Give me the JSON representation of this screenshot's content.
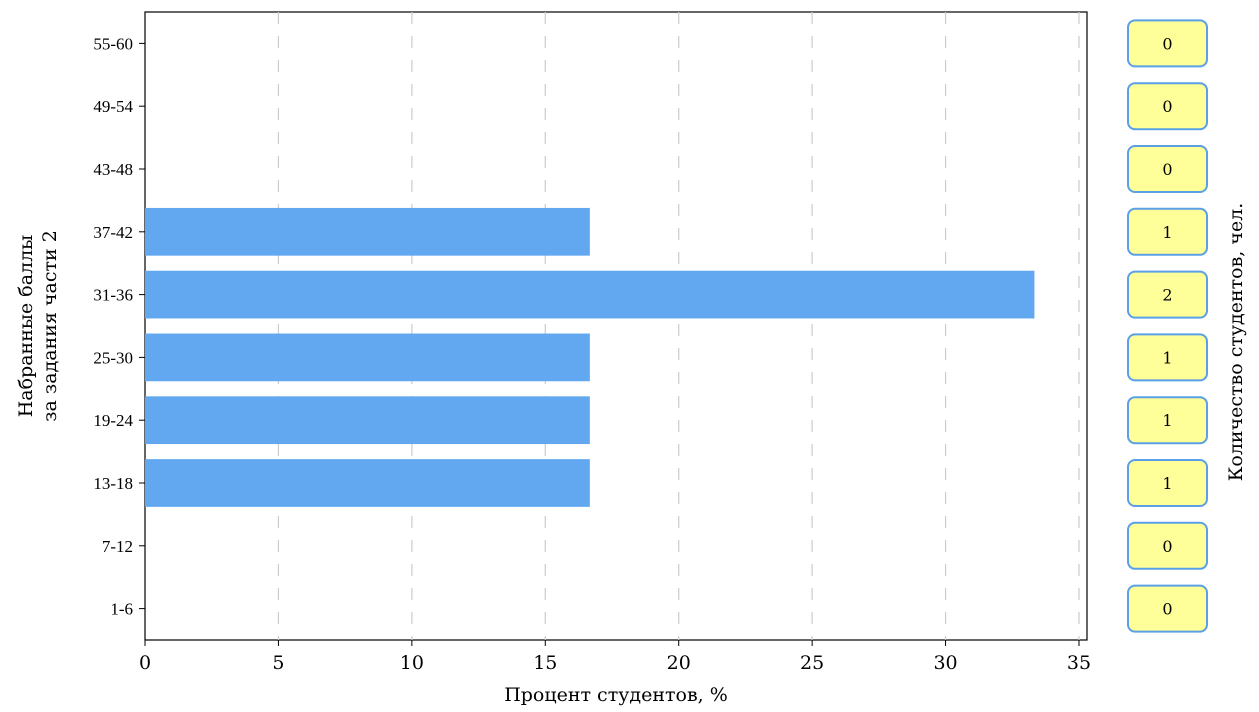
{
  "chart_data": {
    "type": "bar",
    "orientation": "horizontal",
    "categories": [
      "1-6",
      "7-12",
      "13-18",
      "19-24",
      "25-30",
      "31-36",
      "37-42",
      "43-48",
      "49-54",
      "55-60"
    ],
    "values": [
      0,
      0,
      16.67,
      16.67,
      16.67,
      33.33,
      16.67,
      0,
      0,
      0
    ],
    "counts": [
      0,
      0,
      1,
      1,
      1,
      2,
      1,
      0,
      0,
      0
    ],
    "xlabel": "Процент студентов, %",
    "ylabel_lines": [
      "Набранные баллы",
      "за задания части 2"
    ],
    "right_label": "Количество студентов, чел.",
    "xlim": [
      0,
      35.3
    ],
    "xticks": [
      0,
      5,
      10,
      15,
      20,
      25,
      30,
      35
    ],
    "grid": "vertical dashed",
    "colors": {
      "bar": "#62a8f1",
      "badge_fill": "#ffff99",
      "badge_stroke": "#5aa0e6",
      "grid": "#cccccc"
    }
  }
}
